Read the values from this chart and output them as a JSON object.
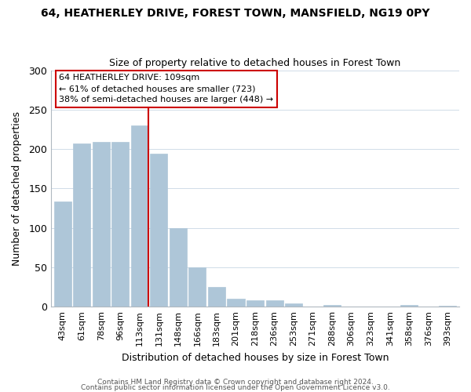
{
  "title": "64, HEATHERLEY DRIVE, FOREST TOWN, MANSFIELD, NG19 0PY",
  "subtitle": "Size of property relative to detached houses in Forest Town",
  "xlabel": "Distribution of detached houses by size in Forest Town",
  "ylabel": "Number of detached properties",
  "bar_labels": [
    "43sqm",
    "61sqm",
    "78sqm",
    "96sqm",
    "113sqm",
    "131sqm",
    "148sqm",
    "166sqm",
    "183sqm",
    "201sqm",
    "218sqm",
    "236sqm",
    "253sqm",
    "271sqm",
    "288sqm",
    "306sqm",
    "323sqm",
    "341sqm",
    "358sqm",
    "376sqm",
    "393sqm"
  ],
  "bar_values": [
    133,
    207,
    209,
    209,
    230,
    194,
    100,
    50,
    25,
    10,
    8,
    8,
    4,
    0,
    2,
    0,
    0,
    0,
    2,
    0,
    1
  ],
  "highlight_index": 4,
  "bar_color_normal": "#aec6d8",
  "bar_color_highlight": "#aec6d8",
  "bar_edge_color": "#aec6d8",
  "highlight_line_color": "#cc0000",
  "ylim": [
    0,
    300
  ],
  "yticks": [
    0,
    50,
    100,
    150,
    200,
    250,
    300
  ],
  "annotation_title": "64 HEATHERLEY DRIVE: 109sqm",
  "annotation_line1": "← 61% of detached houses are smaller (723)",
  "annotation_line2": "38% of semi-detached houses are larger (448) →",
  "annotation_box_color": "#ffffff",
  "annotation_box_edge": "#cc0000",
  "footer1": "Contains HM Land Registry data © Crown copyright and database right 2024.",
  "footer2": "Contains public sector information licensed under the Open Government Licence v3.0.",
  "grid_color": "#d0dce8",
  "spine_color": "#b0b8c0"
}
